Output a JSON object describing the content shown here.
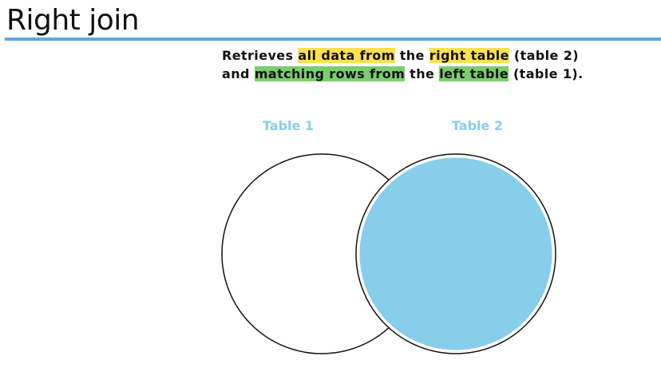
{
  "slide": {
    "title": "Right join"
  },
  "description": {
    "line1": {
      "t1": "Retrieves ",
      "h1": "all data from",
      "t2": " the ",
      "h2": "right table",
      "t3": " (table 2)"
    },
    "line2": {
      "t1": "and ",
      "h1": "matching rows from",
      "t2": " the ",
      "h2": "left table",
      "t3": " (table 1)."
    }
  },
  "venn": {
    "left_label": "Table 1",
    "right_label": "Table 2",
    "label_color": "#87ceeb",
    "fill_color": "#87ceeb",
    "highlighted_set": "Table 2"
  },
  "colors": {
    "accent_rule": "#5ba7ea",
    "highlight_primary": "#fbe04f",
    "highlight_secondary": "#79cf6c"
  }
}
